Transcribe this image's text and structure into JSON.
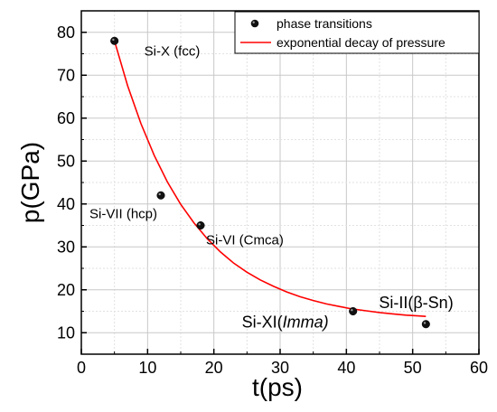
{
  "chart_data": {
    "type": "scatter",
    "title": "",
    "xlabel": "t(ps)",
    "ylabel": "p(GPa)",
    "xlim": [
      0,
      60
    ],
    "ylim": [
      5,
      85
    ],
    "xticks": [
      0,
      10,
      20,
      30,
      40,
      50,
      60
    ],
    "yticks": [
      10,
      20,
      30,
      40,
      50,
      60,
      70,
      80
    ],
    "grid": true,
    "legend_position": "top-right",
    "series": [
      {
        "name": "phase transitions",
        "kind": "scatter",
        "color": "#000000",
        "points": [
          {
            "x": 5,
            "y": 78,
            "label": "Si-X (fcc)"
          },
          {
            "x": 12,
            "y": 42,
            "label": "Si-VII (hcp)"
          },
          {
            "x": 18,
            "y": 35,
            "label": "Si-VI (Cmca)"
          },
          {
            "x": 41,
            "y": 15,
            "label": "Si-XI(Imma)",
            "label_parts": [
              {
                "text": "Si-XI(",
                "italic": false
              },
              {
                "text": "Imma)",
                "italic": true
              }
            ]
          },
          {
            "x": 52,
            "y": 12,
            "label": "Si-II(β-Sn)"
          }
        ]
      },
      {
        "name": "exponential decay of pressure",
        "kind": "line",
        "color": "#ff0000",
        "x": [
          5,
          7,
          9,
          11,
          13,
          15,
          17,
          19,
          21,
          23,
          25,
          27,
          29,
          31,
          33,
          35,
          37,
          39,
          41,
          43,
          45,
          47,
          49,
          51,
          52
        ],
        "y": [
          78,
          67.5,
          58.7,
          51.3,
          45.1,
          39.9,
          35.6,
          31.9,
          28.8,
          26.2,
          24.1,
          22.3,
          20.8,
          19.5,
          18.4,
          17.5,
          16.7,
          16.1,
          15.5,
          15.1,
          14.7,
          14.4,
          14.1,
          13.9,
          13.8
        ]
      }
    ]
  }
}
